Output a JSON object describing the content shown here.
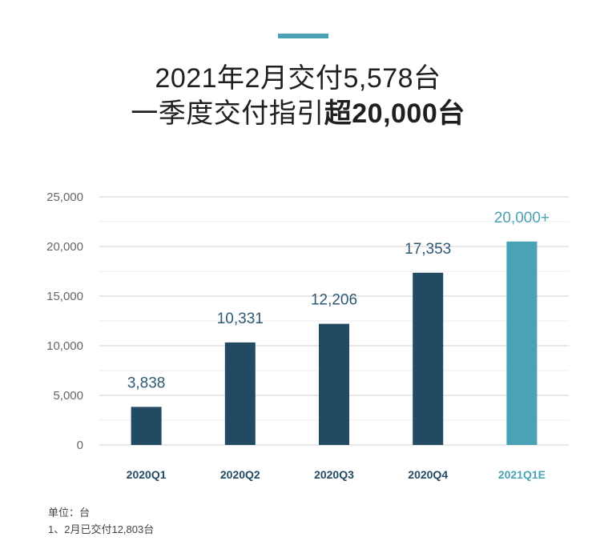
{
  "header": {
    "title_line1": "2021年2月交付5,578台",
    "title_line2_prefix": "一季度交付指引",
    "title_line2_bold": "超20,000台"
  },
  "chart_data": {
    "type": "bar",
    "title": "",
    "xlabel": "",
    "ylabel": "",
    "categories": [
      "2020Q1",
      "2020Q2",
      "2020Q3",
      "2020Q4",
      "2021Q1E"
    ],
    "values": [
      3838,
      10331,
      12206,
      17353,
      20000
    ],
    "data_labels": [
      "3,838",
      "10,331",
      "12,206",
      "17,353",
      "20,000+"
    ],
    "ylim": [
      0,
      25000
    ],
    "yticks": [
      0,
      5000,
      10000,
      15000,
      20000,
      25000
    ],
    "ytick_labels": [
      "0",
      "5,000",
      "10,000",
      "15,000",
      "20,000",
      "25,000"
    ],
    "grid": true,
    "colors": {
      "actual": "#234a63",
      "estimate": "#4aa3b5",
      "actual_label": "#2f5a74",
      "estimate_label": "#4aa3b5",
      "grid": "#d0d0d0",
      "minor_grid": "#ececec"
    },
    "estimate_index": 4
  },
  "footnotes": {
    "unit": "单位：台",
    "note": "1、2月已交付12,803台"
  },
  "accent_color": "#4aa3b5"
}
